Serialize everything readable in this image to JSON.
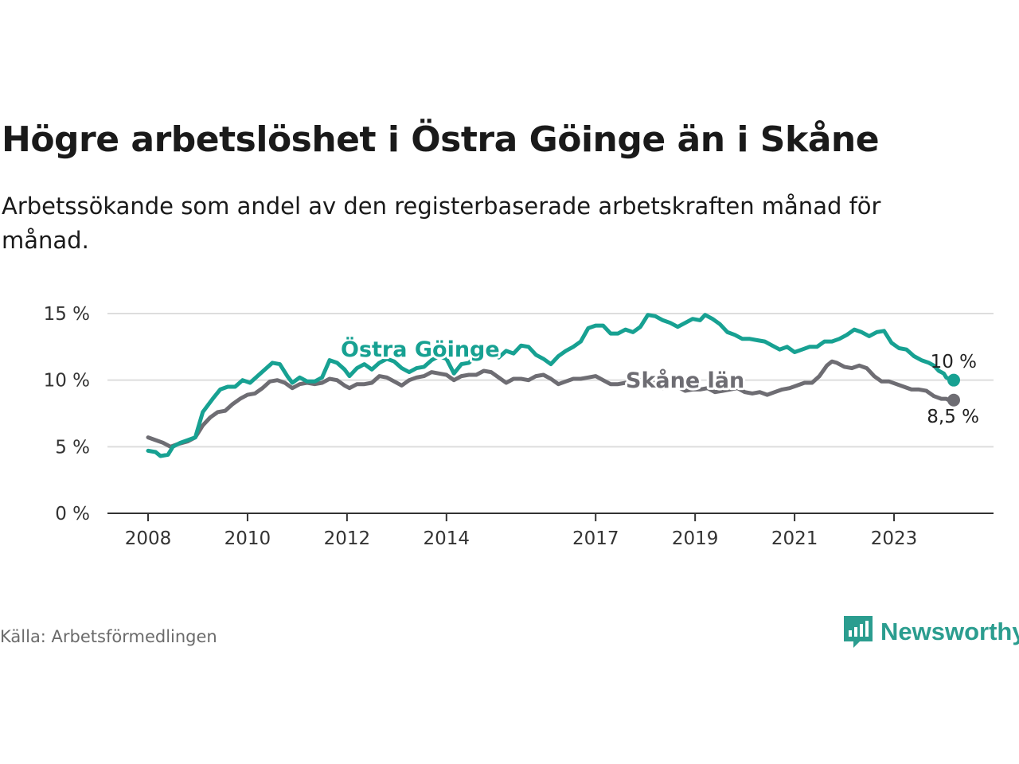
{
  "title": "Högre arbetslöshet i Östra Göinge än i Skåne",
  "subtitle": "Arbetssökande som andel av den registerbaserade arbetskraften månad för månad.",
  "source": "Källa: Arbetsförmedlingen",
  "brand": {
    "name": "Newsworthy",
    "icon": "newsworthy-logo-icon"
  },
  "colors": {
    "primary": "#17a192",
    "secondary": "#6e6d73",
    "grid": "#dddddd",
    "axis": "#333333"
  },
  "chart_data": {
    "type": "line",
    "title": "Högre arbetslöshet i Östra Göinge än i Skåne",
    "xlabel": "",
    "ylabel": "",
    "xlim": [
      2008,
      2024.2
    ],
    "ylim": [
      0,
      15
    ],
    "y_ticks": [
      {
        "value": 0,
        "label": "0 %"
      },
      {
        "value": 5,
        "label": "5 %"
      },
      {
        "value": 10,
        "label": "10 %"
      },
      {
        "value": 15,
        "label": "15 %"
      }
    ],
    "x_ticks": [
      {
        "value": 2008,
        "label": "2008"
      },
      {
        "value": 2010,
        "label": "2010"
      },
      {
        "value": 2012,
        "label": "2012"
      },
      {
        "value": 2014,
        "label": "2014"
      },
      {
        "value": 2017,
        "label": "2017"
      },
      {
        "value": 2019,
        "label": "2019"
      },
      {
        "value": 2021,
        "label": "2021"
      },
      {
        "value": 2023,
        "label": "2023"
      }
    ],
    "series": [
      {
        "name": "Östra Göinge",
        "color": "#17a192",
        "end_label": "10 %",
        "points": [
          [
            2008,
            4.7
          ],
          [
            2008.15,
            4.6
          ],
          [
            2008.25,
            4.3
          ],
          [
            2008.4,
            4.4
          ],
          [
            2008.5,
            5.0
          ],
          [
            2008.65,
            5.3
          ],
          [
            2008.8,
            5.5
          ],
          [
            2008.95,
            5.7
          ],
          [
            2009.1,
            7.6
          ],
          [
            2009.3,
            8.6
          ],
          [
            2009.45,
            9.3
          ],
          [
            2009.6,
            9.5
          ],
          [
            2009.75,
            9.5
          ],
          [
            2009.9,
            10.0
          ],
          [
            2010.05,
            9.8
          ],
          [
            2010.2,
            10.3
          ],
          [
            2010.35,
            10.8
          ],
          [
            2010.5,
            11.3
          ],
          [
            2010.65,
            11.2
          ],
          [
            2010.8,
            10.3
          ],
          [
            2010.9,
            9.8
          ],
          [
            2011.05,
            10.2
          ],
          [
            2011.2,
            9.9
          ],
          [
            2011.35,
            9.9
          ],
          [
            2011.5,
            10.2
          ],
          [
            2011.65,
            11.5
          ],
          [
            2011.8,
            11.3
          ],
          [
            2011.95,
            10.8
          ],
          [
            2012.05,
            10.3
          ],
          [
            2012.2,
            10.9
          ],
          [
            2012.35,
            11.2
          ],
          [
            2012.5,
            10.8
          ],
          [
            2012.65,
            11.3
          ],
          [
            2012.8,
            11.6
          ],
          [
            2012.95,
            11.4
          ],
          [
            2013.1,
            10.9
          ],
          [
            2013.25,
            10.6
          ],
          [
            2013.4,
            10.9
          ],
          [
            2013.55,
            11.0
          ],
          [
            2013.7,
            11.5
          ],
          [
            2013.85,
            11.8
          ],
          [
            2014.0,
            11.6
          ],
          [
            2014.15,
            10.5
          ],
          [
            2014.3,
            11.2
          ],
          [
            2014.45,
            11.3
          ],
          [
            2014.6,
            11.8
          ],
          [
            2014.75,
            12.3
          ],
          [
            2014.9,
            12.0
          ],
          [
            2015.05,
            11.7
          ],
          [
            2015.2,
            12.2
          ],
          [
            2015.35,
            12.0
          ],
          [
            2015.5,
            12.6
          ],
          [
            2015.65,
            12.5
          ],
          [
            2015.8,
            11.9
          ],
          [
            2015.95,
            11.6
          ],
          [
            2016.1,
            11.2
          ],
          [
            2016.25,
            11.8
          ],
          [
            2016.4,
            12.2
          ],
          [
            2016.55,
            12.5
          ],
          [
            2016.7,
            12.9
          ],
          [
            2016.85,
            13.9
          ],
          [
            2017.0,
            14.1
          ],
          [
            2017.15,
            14.1
          ],
          [
            2017.3,
            13.5
          ],
          [
            2017.45,
            13.5
          ],
          [
            2017.6,
            13.8
          ],
          [
            2017.75,
            13.6
          ],
          [
            2017.9,
            14.0
          ],
          [
            2018.05,
            14.9
          ],
          [
            2018.2,
            14.8
          ],
          [
            2018.35,
            14.5
          ],
          [
            2018.5,
            14.3
          ],
          [
            2018.65,
            14.0
          ],
          [
            2018.8,
            14.3
          ],
          [
            2018.95,
            14.6
          ],
          [
            2019.1,
            14.5
          ],
          [
            2019.2,
            14.9
          ],
          [
            2019.35,
            14.6
          ],
          [
            2019.5,
            14.2
          ],
          [
            2019.65,
            13.6
          ],
          [
            2019.8,
            13.4
          ],
          [
            2019.95,
            13.1
          ],
          [
            2020.1,
            13.1
          ],
          [
            2020.25,
            13.0
          ],
          [
            2020.4,
            12.9
          ],
          [
            2020.55,
            12.6
          ],
          [
            2020.7,
            12.3
          ],
          [
            2020.85,
            12.5
          ],
          [
            2021.0,
            12.1
          ],
          [
            2021.15,
            12.3
          ],
          [
            2021.3,
            12.5
          ],
          [
            2021.45,
            12.5
          ],
          [
            2021.6,
            12.9
          ],
          [
            2021.75,
            12.9
          ],
          [
            2021.9,
            13.1
          ],
          [
            2022.05,
            13.4
          ],
          [
            2022.2,
            13.8
          ],
          [
            2022.35,
            13.6
          ],
          [
            2022.5,
            13.3
          ],
          [
            2022.65,
            13.6
          ],
          [
            2022.8,
            13.7
          ],
          [
            2022.95,
            12.8
          ],
          [
            2023.1,
            12.4
          ],
          [
            2023.25,
            12.3
          ],
          [
            2023.4,
            11.8
          ],
          [
            2023.55,
            11.5
          ],
          [
            2023.7,
            11.3
          ],
          [
            2023.8,
            11.1
          ],
          [
            2023.9,
            10.7
          ],
          [
            2024.0,
            10.5
          ],
          [
            2024.05,
            10.2
          ],
          [
            2024.1,
            10.1
          ],
          [
            2024.2,
            10.0
          ]
        ]
      },
      {
        "name": "Skåne län",
        "color": "#6e6d73",
        "end_label": "8,5 %",
        "points": [
          [
            2008,
            5.7
          ],
          [
            2008.15,
            5.5
          ],
          [
            2008.3,
            5.3
          ],
          [
            2008.45,
            5.0
          ],
          [
            2008.6,
            5.2
          ],
          [
            2008.8,
            5.4
          ],
          [
            2008.95,
            5.7
          ],
          [
            2009.1,
            6.6
          ],
          [
            2009.25,
            7.2
          ],
          [
            2009.4,
            7.6
          ],
          [
            2009.55,
            7.7
          ],
          [
            2009.7,
            8.2
          ],
          [
            2009.85,
            8.6
          ],
          [
            2010.0,
            8.9
          ],
          [
            2010.15,
            9.0
          ],
          [
            2010.3,
            9.4
          ],
          [
            2010.45,
            9.9
          ],
          [
            2010.6,
            10.0
          ],
          [
            2010.75,
            9.8
          ],
          [
            2010.9,
            9.4
          ],
          [
            2011.05,
            9.7
          ],
          [
            2011.2,
            9.8
          ],
          [
            2011.35,
            9.7
          ],
          [
            2011.5,
            9.8
          ],
          [
            2011.65,
            10.1
          ],
          [
            2011.8,
            10.0
          ],
          [
            2011.95,
            9.6
          ],
          [
            2012.05,
            9.4
          ],
          [
            2012.2,
            9.7
          ],
          [
            2012.35,
            9.7
          ],
          [
            2012.5,
            9.8
          ],
          [
            2012.65,
            10.3
          ],
          [
            2012.8,
            10.2
          ],
          [
            2012.95,
            9.9
          ],
          [
            2013.1,
            9.6
          ],
          [
            2013.25,
            10.0
          ],
          [
            2013.4,
            10.2
          ],
          [
            2013.55,
            10.3
          ],
          [
            2013.7,
            10.6
          ],
          [
            2013.85,
            10.5
          ],
          [
            2014.0,
            10.4
          ],
          [
            2014.15,
            10.0
          ],
          [
            2014.3,
            10.3
          ],
          [
            2014.45,
            10.4
          ],
          [
            2014.6,
            10.4
          ],
          [
            2014.75,
            10.7
          ],
          [
            2014.9,
            10.6
          ],
          [
            2015.05,
            10.2
          ],
          [
            2015.2,
            9.8
          ],
          [
            2015.35,
            10.1
          ],
          [
            2015.5,
            10.1
          ],
          [
            2015.65,
            10.0
          ],
          [
            2015.8,
            10.3
          ],
          [
            2015.95,
            10.4
          ],
          [
            2016.1,
            10.1
          ],
          [
            2016.25,
            9.7
          ],
          [
            2016.4,
            9.9
          ],
          [
            2016.55,
            10.1
          ],
          [
            2016.7,
            10.1
          ],
          [
            2016.85,
            10.2
          ],
          [
            2017.0,
            10.3
          ],
          [
            2017.15,
            10.0
          ],
          [
            2017.3,
            9.7
          ],
          [
            2017.45,
            9.7
          ],
          [
            2017.6,
            9.8
          ],
          [
            2017.75,
            9.9
          ],
          [
            2017.9,
            10.0
          ],
          [
            2018.05,
            10.1
          ],
          [
            2018.2,
            9.7
          ],
          [
            2018.35,
            9.4
          ],
          [
            2018.5,
            9.6
          ],
          [
            2018.65,
            9.5
          ],
          [
            2018.8,
            9.2
          ],
          [
            2018.95,
            9.3
          ],
          [
            2019.1,
            9.3
          ],
          [
            2019.25,
            9.4
          ],
          [
            2019.4,
            9.1
          ],
          [
            2019.55,
            9.2
          ],
          [
            2019.7,
            9.3
          ],
          [
            2019.85,
            9.4
          ],
          [
            2020.0,
            9.1
          ],
          [
            2020.15,
            9.0
          ],
          [
            2020.3,
            9.1
          ],
          [
            2020.45,
            8.9
          ],
          [
            2020.6,
            9.1
          ],
          [
            2020.75,
            9.3
          ],
          [
            2020.9,
            9.4
          ],
          [
            2021.05,
            9.6
          ],
          [
            2021.2,
            9.8
          ],
          [
            2021.35,
            9.8
          ],
          [
            2021.5,
            10.3
          ],
          [
            2021.65,
            11.1
          ],
          [
            2021.75,
            11.4
          ],
          [
            2021.85,
            11.3
          ],
          [
            2022.0,
            11.0
          ],
          [
            2022.15,
            10.9
          ],
          [
            2022.3,
            11.1
          ],
          [
            2022.45,
            10.9
          ],
          [
            2022.6,
            10.3
          ],
          [
            2022.75,
            9.9
          ],
          [
            2022.9,
            9.9
          ],
          [
            2023.05,
            9.7
          ],
          [
            2023.2,
            9.5
          ],
          [
            2023.35,
            9.3
          ],
          [
            2023.5,
            9.3
          ],
          [
            2023.65,
            9.2
          ],
          [
            2023.8,
            8.8
          ],
          [
            2023.95,
            8.6
          ],
          [
            2024.05,
            8.6
          ],
          [
            2024.15,
            8.4
          ],
          [
            2024.2,
            8.5
          ]
        ]
      }
    ]
  }
}
